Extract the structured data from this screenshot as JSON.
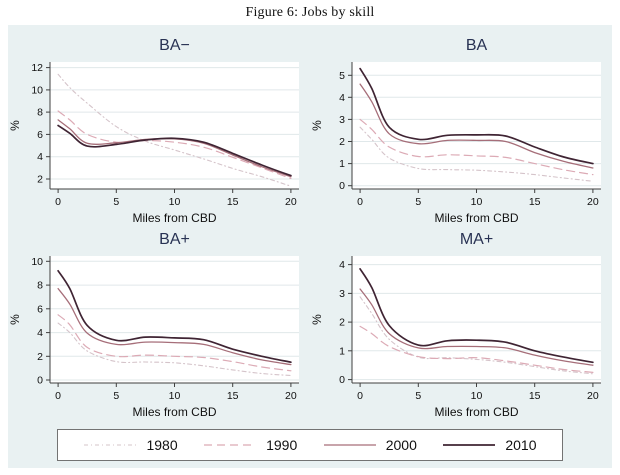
{
  "figure": {
    "caption": "Figure 6: Jobs by skill"
  },
  "axes": {
    "xlabel": "Miles from CBD",
    "ylabel": "%"
  },
  "legend": {
    "entries": [
      {
        "label": "1980"
      },
      {
        "label": "1990"
      },
      {
        "label": "2000"
      },
      {
        "label": "2010"
      }
    ]
  },
  "style": {
    "figure_bg": "#e9f1f2",
    "plot_bg": "#ffffff",
    "grid_color": "#e0e8ea",
    "axis_color": "#3f3f3f",
    "text_color": "#111111",
    "panel_title_color": "#283253",
    "legend_border": "#737373",
    "series": {
      "1980": {
        "color": "#d5c4ca",
        "dash": "4 3 1 3",
        "width": 1.1
      },
      "1990": {
        "color": "#dcaab5",
        "dash": "8 5",
        "width": 1.2
      },
      "2000": {
        "color": "#a66e79",
        "dash": "",
        "width": 1.3
      },
      "2010": {
        "color": "#3f2433",
        "dash": "",
        "width": 1.7
      }
    }
  },
  "chart_data": [
    {
      "type": "line",
      "title": "BA−",
      "xlabel": "Miles from CBD",
      "ylabel": "%",
      "x": [
        0,
        1,
        2.5,
        5,
        7.5,
        10,
        12.5,
        15,
        17.5,
        20
      ],
      "xticks": [
        0,
        5,
        10,
        15,
        20
      ],
      "yticks": [
        2,
        4,
        6,
        8,
        10,
        12
      ],
      "xlim": [
        -0.7,
        20.7
      ],
      "ylim": [
        1.1,
        12.5
      ],
      "grid": "horizontal",
      "legend_position": "bottom-shared",
      "series": [
        {
          "name": "1980",
          "values": [
            11.4,
            10.2,
            8.8,
            6.7,
            5.4,
            4.6,
            3.8,
            2.95,
            2.2,
            1.35
          ]
        },
        {
          "name": "1990",
          "values": [
            8.1,
            7.3,
            6.0,
            5.3,
            5.45,
            5.3,
            4.85,
            3.95,
            3.0,
            2.05
          ]
        },
        {
          "name": "2000",
          "values": [
            7.3,
            6.5,
            5.2,
            5.25,
            5.55,
            5.6,
            5.2,
            4.15,
            3.1,
            2.2
          ]
        },
        {
          "name": "2010",
          "values": [
            6.8,
            6.1,
            4.95,
            5.1,
            5.5,
            5.65,
            5.3,
            4.3,
            3.25,
            2.3
          ]
        }
      ]
    },
    {
      "type": "line",
      "title": "BA",
      "xlabel": "Miles from CBD",
      "ylabel": "%",
      "x": [
        0,
        1,
        2.5,
        5,
        7.5,
        10,
        12.5,
        15,
        17.5,
        20
      ],
      "xticks": [
        0,
        5,
        10,
        15,
        20
      ],
      "yticks": [
        0,
        1,
        2,
        3,
        4,
        5
      ],
      "xlim": [
        -0.7,
        20.7
      ],
      "ylim": [
        -0.15,
        5.6
      ],
      "grid": "horizontal",
      "legend_position": "bottom-shared",
      "series": [
        {
          "name": "1980",
          "values": [
            2.65,
            2.1,
            1.25,
            0.78,
            0.73,
            0.7,
            0.62,
            0.5,
            0.35,
            0.2
          ]
        },
        {
          "name": "1990",
          "values": [
            3.0,
            2.55,
            1.75,
            1.32,
            1.4,
            1.35,
            1.28,
            1.0,
            0.72,
            0.5
          ]
        },
        {
          "name": "2000",
          "values": [
            4.6,
            3.8,
            2.35,
            1.9,
            2.05,
            2.05,
            2.0,
            1.5,
            1.1,
            0.8
          ]
        },
        {
          "name": "2010",
          "values": [
            5.3,
            4.4,
            2.65,
            2.1,
            2.28,
            2.3,
            2.25,
            1.75,
            1.3,
            1.0
          ]
        }
      ]
    },
    {
      "type": "line",
      "title": "BA+",
      "xlabel": "Miles from CBD",
      "ylabel": "%",
      "x": [
        0,
        1,
        2.5,
        5,
        7.5,
        10,
        12.5,
        15,
        17.5,
        20
      ],
      "xticks": [
        0,
        5,
        10,
        15,
        20
      ],
      "yticks": [
        0,
        2,
        4,
        6,
        8,
        10
      ],
      "xlim": [
        -0.7,
        20.7
      ],
      "ylim": [
        -0.25,
        10.45
      ],
      "grid": "horizontal",
      "legend_position": "bottom-shared",
      "series": [
        {
          "name": "1980",
          "values": [
            4.8,
            4.0,
            2.45,
            1.55,
            1.52,
            1.45,
            1.2,
            0.85,
            0.55,
            0.38
          ]
        },
        {
          "name": "1990",
          "values": [
            5.5,
            4.65,
            2.75,
            2.0,
            2.1,
            2.0,
            1.9,
            1.55,
            1.1,
            0.78
          ]
        },
        {
          "name": "2000",
          "values": [
            7.7,
            6.4,
            3.95,
            3.0,
            3.2,
            3.15,
            3.0,
            2.3,
            1.7,
            1.3
          ]
        },
        {
          "name": "2010",
          "values": [
            9.2,
            7.7,
            4.6,
            3.35,
            3.62,
            3.55,
            3.4,
            2.6,
            2.0,
            1.5
          ]
        }
      ]
    },
    {
      "type": "line",
      "title": "MA+",
      "xlabel": "Miles from CBD",
      "ylabel": "%",
      "x": [
        0,
        1,
        2.5,
        5,
        7.5,
        10,
        12.5,
        15,
        17.5,
        20
      ],
      "xticks": [
        0,
        5,
        10,
        15,
        20
      ],
      "yticks": [
        0,
        1,
        2,
        3,
        4
      ],
      "xlim": [
        -0.7,
        20.7
      ],
      "ylim": [
        -0.12,
        4.3
      ],
      "grid": "horizontal",
      "legend_position": "bottom-shared",
      "series": [
        {
          "name": "1980",
          "values": [
            2.88,
            2.3,
            1.4,
            0.78,
            0.76,
            0.7,
            0.6,
            0.45,
            0.3,
            0.2
          ]
        },
        {
          "name": "1990",
          "values": [
            1.85,
            1.6,
            1.15,
            0.8,
            0.73,
            0.76,
            0.65,
            0.5,
            0.35,
            0.25
          ]
        },
        {
          "name": "2000",
          "values": [
            3.15,
            2.6,
            1.6,
            1.1,
            1.15,
            1.15,
            1.1,
            0.85,
            0.65,
            0.5
          ]
        },
        {
          "name": "2010",
          "values": [
            3.85,
            3.2,
            1.88,
            1.2,
            1.35,
            1.37,
            1.3,
            1.0,
            0.78,
            0.6
          ]
        }
      ]
    }
  ]
}
